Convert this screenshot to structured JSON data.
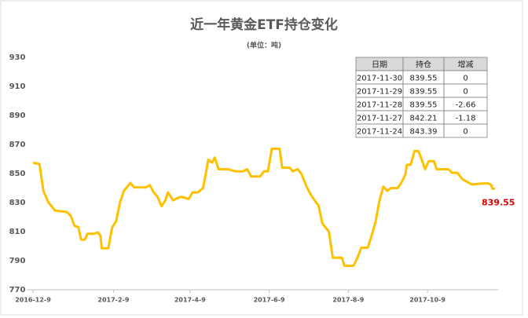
{
  "chart_data": {
    "type": "line",
    "title": "近一年黄金ETF持仓变化",
    "subtitle": "(单位：吨)",
    "x": [
      "2016-12-9",
      "2016-12-14",
      "2016-12-17",
      "2016-12-21",
      "2016-12-26",
      "2017-1-4",
      "2017-1-7",
      "2017-1-10",
      "2017-1-13",
      "2017-1-15",
      "2017-1-18",
      "2017-1-20",
      "2017-1-25",
      "2017-1-28",
      "2017-1-30",
      "2017-1-31",
      "2017-2-5",
      "2017-2-8",
      "2017-2-11",
      "2017-2-14",
      "2017-2-17",
      "2017-2-22",
      "2017-2-25",
      "2017-3-6",
      "2017-3-9",
      "2017-3-12",
      "2017-3-15",
      "2017-3-18",
      "2017-3-21",
      "2017-3-23",
      "2017-3-27",
      "2017-3-30",
      "2017-4-2",
      "2017-4-8",
      "2017-4-11",
      "2017-4-15",
      "2017-4-19",
      "2017-4-21",
      "2017-4-23",
      "2017-4-26",
      "2017-4-28",
      "2017-5-1",
      "2017-5-8",
      "2017-5-14",
      "2017-5-20",
      "2017-5-23",
      "2017-5-26",
      "2017-6-2",
      "2017-6-5",
      "2017-6-8",
      "2017-6-11",
      "2017-6-17",
      "2017-6-19",
      "2017-6-25",
      "2017-6-27",
      "2017-7-1",
      "2017-7-4",
      "2017-7-8",
      "2017-7-11",
      "2017-7-14",
      "2017-7-17",
      "2017-7-20",
      "2017-7-25",
      "2017-7-28",
      "2017-8-4",
      "2017-8-6",
      "2017-8-13",
      "2017-8-16",
      "2017-8-19",
      "2017-8-24",
      "2017-8-27",
      "2017-8-30",
      "2017-9-2",
      "2017-9-5",
      "2017-9-8",
      "2017-9-11",
      "2017-9-16",
      "2017-9-19",
      "2017-9-22",
      "2017-9-23",
      "2017-9-26",
      "2017-9-29",
      "2017-10-2",
      "2017-10-5",
      "2017-10-7",
      "2017-10-10",
      "2017-10-14",
      "2017-10-16",
      "2017-10-25",
      "2017-10-28",
      "2017-11-1",
      "2017-11-5",
      "2017-11-9",
      "2017-11-12",
      "2017-11-24",
      "2017-11-27",
      "2017-11-28",
      "2017-11-29",
      "2017-11-30"
    ],
    "values": [
      857.5,
      856.5,
      838,
      830,
      824.5,
      823.5,
      821,
      814,
      813,
      804.5,
      804.5,
      808.5,
      808.5,
      809.5,
      807,
      798.5,
      798.5,
      813,
      817,
      830,
      838,
      843.5,
      840.5,
      840.5,
      842,
      837,
      834,
      827.5,
      831.5,
      837,
      831.5,
      833,
      834,
      832.5,
      837,
      837,
      840,
      849,
      859.5,
      857.5,
      861,
      853,
      853,
      851.5,
      851.5,
      853,
      848,
      848,
      851.5,
      851.5,
      867,
      867,
      854,
      854,
      851.5,
      853,
      849.5,
      840.5,
      835.5,
      831.5,
      828,
      815.5,
      810,
      792,
      792,
      786.5,
      786.5,
      792,
      799,
      799,
      807.5,
      817,
      831.5,
      841,
      838,
      840,
      840,
      844,
      849.5,
      856,
      856,
      865.5,
      865.5,
      858.5,
      853,
      858.5,
      858.5,
      853,
      853,
      850.5,
      850.5,
      846,
      844,
      842.5,
      843.39,
      842.21,
      839.55,
      839.55,
      839.55
    ],
    "color": "#ffc000",
    "xlim": [
      "2016-12-9",
      "2017-11-30"
    ],
    "xticks": [
      "2016-12-9",
      "2017-2-9",
      "2017-4-9",
      "2017-6-9",
      "2017-8-9",
      "2017-10-9"
    ],
    "ylim": [
      770,
      930
    ],
    "yticks": [
      770,
      790,
      810,
      830,
      850,
      870,
      890,
      910,
      930
    ],
    "grid": false,
    "table": {
      "header": [
        "日期",
        "持仓",
        "增减"
      ],
      "rows": [
        [
          "2017-11-30",
          "839.55",
          "0"
        ],
        [
          "2017-11-29",
          "839.55",
          "0"
        ],
        [
          "2017-11-28",
          "839.55",
          "-2.66"
        ],
        [
          "2017-11-27",
          "842.21",
          "-1.18"
        ],
        [
          "2017-11-24",
          "843.39",
          "0"
        ]
      ]
    }
  }
}
